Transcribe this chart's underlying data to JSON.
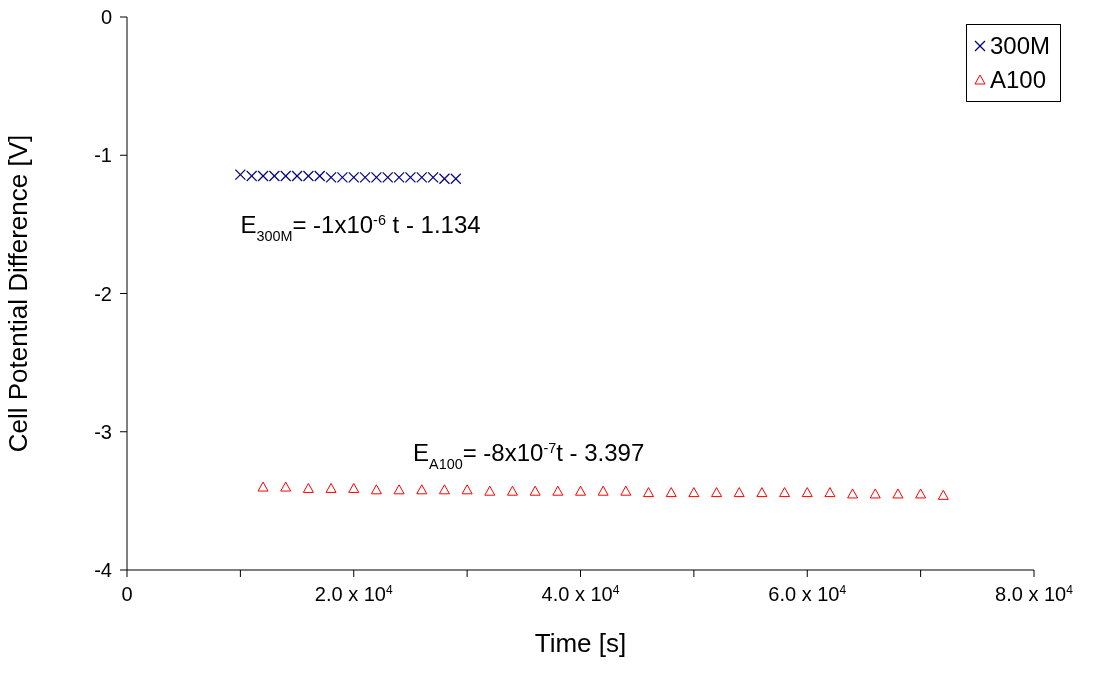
{
  "chart_data": {
    "type": "scatter",
    "xlabel": "Time  [s]",
    "ylabel": "Cell Potential Difference [V]",
    "xlim": [
      0,
      80000
    ],
    "ylim": [
      -4,
      0
    ],
    "xticks": [
      0,
      {
        "value": 10000,
        "label": null
      },
      {
        "value": 20000,
        "label": "2.0 x 10$^{4}$"
      },
      {
        "value": 30000,
        "label": null
      },
      {
        "value": 40000,
        "label": "4.0 x 10$^{4}$"
      },
      {
        "value": 50000,
        "label": null
      },
      {
        "value": 60000,
        "label": "6.0 x 10$^{4}$"
      },
      {
        "value": 70000,
        "label": null
      },
      {
        "value": 80000,
        "label": "8.0 x 10$^{4}$"
      }
    ],
    "yticks": [
      0,
      -1,
      -2,
      -3,
      -4
    ],
    "grid": false,
    "legend": "top right",
    "series": [
      {
        "name": "300M",
        "color": "#000080",
        "marker": "cross",
        "x": [
          10000,
          11000,
          12000,
          13000,
          14000,
          15000,
          16000,
          17000,
          18000,
          19000,
          20000,
          21000,
          22000,
          23000,
          24000,
          25000,
          26000,
          27000,
          28000,
          29000
        ],
        "values": [
          -1.14,
          -1.15,
          -1.15,
          -1.15,
          -1.15,
          -1.15,
          -1.15,
          -1.15,
          -1.16,
          -1.16,
          -1.16,
          -1.16,
          -1.16,
          -1.16,
          -1.16,
          -1.16,
          -1.16,
          -1.16,
          -1.17,
          -1.17
        ]
      },
      {
        "name": "A100",
        "color": "#ff0000",
        "marker": "triangle",
        "x": [
          12000,
          14000,
          16000,
          18000,
          20000,
          22000,
          24000,
          26000,
          28000,
          30000,
          32000,
          34000,
          36000,
          38000,
          40000,
          42000,
          44000,
          46000,
          48000,
          50000,
          52000,
          54000,
          56000,
          58000,
          60000,
          62000,
          64000,
          66000,
          68000,
          70000,
          72000
        ],
        "values": [
          -3.4,
          -3.4,
          -3.41,
          -3.41,
          -3.41,
          -3.42,
          -3.42,
          -3.42,
          -3.42,
          -3.42,
          -3.43,
          -3.43,
          -3.43,
          -3.43,
          -3.43,
          -3.43,
          -3.43,
          -3.44,
          -3.44,
          -3.44,
          -3.44,
          -3.44,
          -3.44,
          -3.44,
          -3.44,
          -3.44,
          -3.45,
          -3.45,
          -3.45,
          -3.45,
          -3.46
        ]
      }
    ],
    "annotations": [
      "E$_{300M}$= -1x10$^{-6}$ t - 1.134",
      "E$_{A100}$= -8x10$^{-7}$t - 3.397"
    ]
  }
}
